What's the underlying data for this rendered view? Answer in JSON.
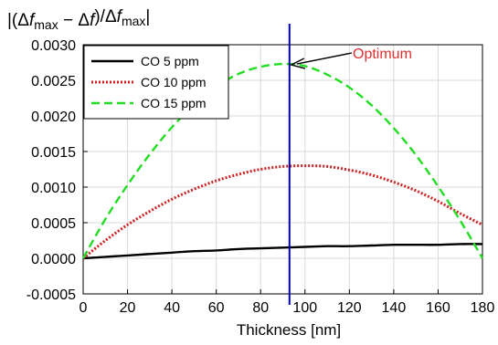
{
  "chart_data": {
    "type": "line",
    "title": "",
    "ylabel": "|(Δf_max − Δf)/Δf_max|",
    "xlabel": "Thickness [nm]",
    "xlim": [
      0,
      180
    ],
    "ylim": [
      -0.0005,
      0.003
    ],
    "x_ticks": [
      0,
      20,
      40,
      60,
      80,
      100,
      120,
      140,
      160,
      180
    ],
    "y_ticks": [
      -0.0005,
      0.0,
      0.0005,
      0.001,
      0.0015,
      0.002,
      0.0025,
      0.003
    ],
    "y_tick_labels": [
      "-0.0005",
      "0.0000",
      "0.0005",
      "0.0010",
      "0.0015",
      "0.0020",
      "0.0025",
      "0.0030"
    ],
    "x_tick_labels": [
      "0",
      "20",
      "40",
      "60",
      "80",
      "100",
      "120",
      "140",
      "160",
      "180"
    ],
    "grid": true,
    "legend_position": "top-left",
    "x": [
      0,
      10,
      20,
      30,
      40,
      50,
      60,
      70,
      80,
      90,
      100,
      110,
      120,
      130,
      140,
      150,
      160,
      170,
      180
    ],
    "series": [
      {
        "name": "CO 5 ppm",
        "color": "#000000",
        "style": "solid",
        "values": [
          0.0,
          2e-05,
          4e-05,
          6e-05,
          8e-05,
          0.0001,
          0.00011,
          0.00013,
          0.00014,
          0.00015,
          0.00016,
          0.00017,
          0.00017,
          0.00018,
          0.00019,
          0.00019,
          0.00019,
          0.0002,
          0.0002
        ]
      },
      {
        "name": "CO 10 ppm",
        "color": "#cc2222",
        "style": "dotted",
        "values": [
          0.0,
          0.00025,
          0.00047,
          0.00066,
          0.00083,
          0.00097,
          0.00109,
          0.00118,
          0.00125,
          0.00129,
          0.0013,
          0.00129,
          0.00124,
          0.00117,
          0.00107,
          0.00095,
          0.0008,
          0.00063,
          0.00047
        ]
      },
      {
        "name": "CO 15 ppm",
        "color": "#22dd22",
        "style": "dashed",
        "values": [
          0.0,
          0.00055,
          0.00103,
          0.00146,
          0.00184,
          0.00215,
          0.00241,
          0.00259,
          0.00269,
          0.00273,
          0.0027,
          0.00258,
          0.0024,
          0.00215,
          0.00183,
          0.00145,
          0.00101,
          0.00053,
          0.0
        ]
      }
    ],
    "optimum": {
      "label": "Optimum",
      "x": 93,
      "y": 0.00273,
      "line_color": "#0000aa",
      "label_color": "#e03030"
    }
  }
}
